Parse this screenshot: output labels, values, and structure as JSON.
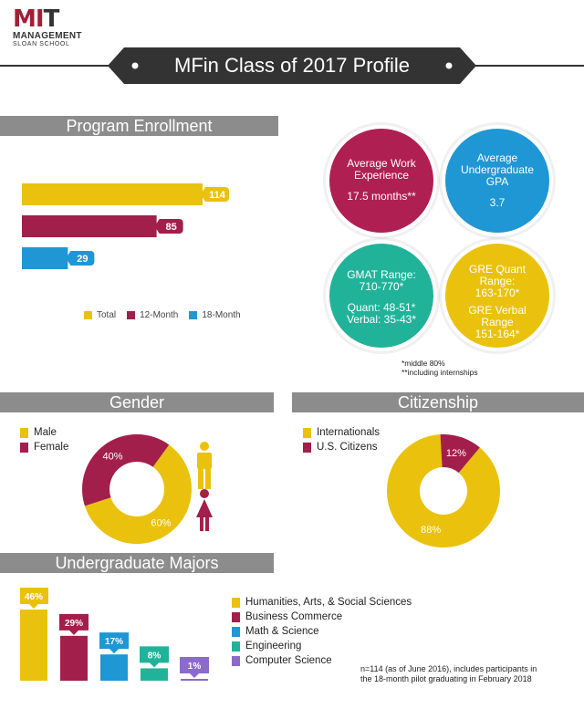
{
  "logo": {
    "line1_a": "M",
    "line1_b": "I",
    "line1_c": "T",
    "line2": "MANAGEMENT",
    "line3": "SLOAN SCHOOL"
  },
  "title": "MFin Class of 2017 Profile",
  "colors": {
    "yellow": "#eac20d",
    "crimson": "#a31f4b",
    "blue": "#1f97d4",
    "teal": "#21b39a",
    "purple": "#8b6cc8",
    "gray": "#8c8c8c",
    "dark": "#333333"
  },
  "enrollment": {
    "header": "Program Enrollment",
    "legend": [
      "Total",
      "12-Month",
      "18-Month"
    ],
    "chart_data": {
      "type": "bar",
      "orientation": "horizontal",
      "categories": [
        "Total",
        "12-Month",
        "18-Month"
      ],
      "values": [
        114,
        85,
        29
      ],
      "colors": [
        "#eac20d",
        "#a31f4b",
        "#1f97d4"
      ],
      "legend_position": "bottom"
    }
  },
  "stats": {
    "work": {
      "title": "Average Work Experience",
      "value": "17.5 months**"
    },
    "gpa": {
      "title": "Average Undergraduate GPA",
      "value": "3.7"
    },
    "gmat": {
      "title": "GMAT Range:",
      "range": "710-770*",
      "quant": "Quant: 48-51*",
      "verbal": "Verbal: 35-43*"
    },
    "gre": {
      "quant_title": "GRE Quant Range:",
      "quant_range": "163-170*",
      "verbal_title": "GRE Verbal Range",
      "verbal_range": "151-164*"
    },
    "note1": "*middle 80%",
    "note2": "**including internships"
  },
  "gender": {
    "header": "Gender",
    "legend": [
      "Male",
      "Female"
    ],
    "chart_data": {
      "type": "pie",
      "style": "donut",
      "categories": [
        "Male",
        "Female"
      ],
      "values": [
        60,
        40
      ],
      "labels": [
        "60%",
        "40%"
      ],
      "colors": [
        "#eac20d",
        "#a31f4b"
      ],
      "legend_position": "top-left"
    }
  },
  "citizenship": {
    "header": "Citizenship",
    "legend": [
      "Internationals",
      "U.S. Citizens"
    ],
    "chart_data": {
      "type": "pie",
      "style": "donut",
      "categories": [
        "Internationals",
        "U.S. Citizens"
      ],
      "values": [
        88,
        12
      ],
      "labels": [
        "88%",
        "12%"
      ],
      "colors": [
        "#eac20d",
        "#a31f4b"
      ],
      "legend_position": "top-left"
    }
  },
  "majors": {
    "header": "Undergraduate Majors",
    "legend": [
      "Humanities, Arts, & Social Sciences",
      "Business Commerce",
      "Math & Science",
      "Engineering",
      "Computer Science"
    ],
    "chart_data": {
      "type": "bar",
      "categories": [
        "Humanities, Arts, & Social Sciences",
        "Business Commerce",
        "Math & Science",
        "Engineering",
        "Computer Science"
      ],
      "values": [
        46,
        29,
        17,
        8,
        1
      ],
      "labels": [
        "46%",
        "29%",
        "17%",
        "8%",
        "1%"
      ],
      "colors": [
        "#eac20d",
        "#a31f4b",
        "#1f97d4",
        "#21b39a",
        "#8b6cc8"
      ],
      "legend_position": "right"
    },
    "footnote1": "n=114 (as of June 2016), includes participants in",
    "footnote2": "the 18-month pilot graduating in February 2018"
  }
}
